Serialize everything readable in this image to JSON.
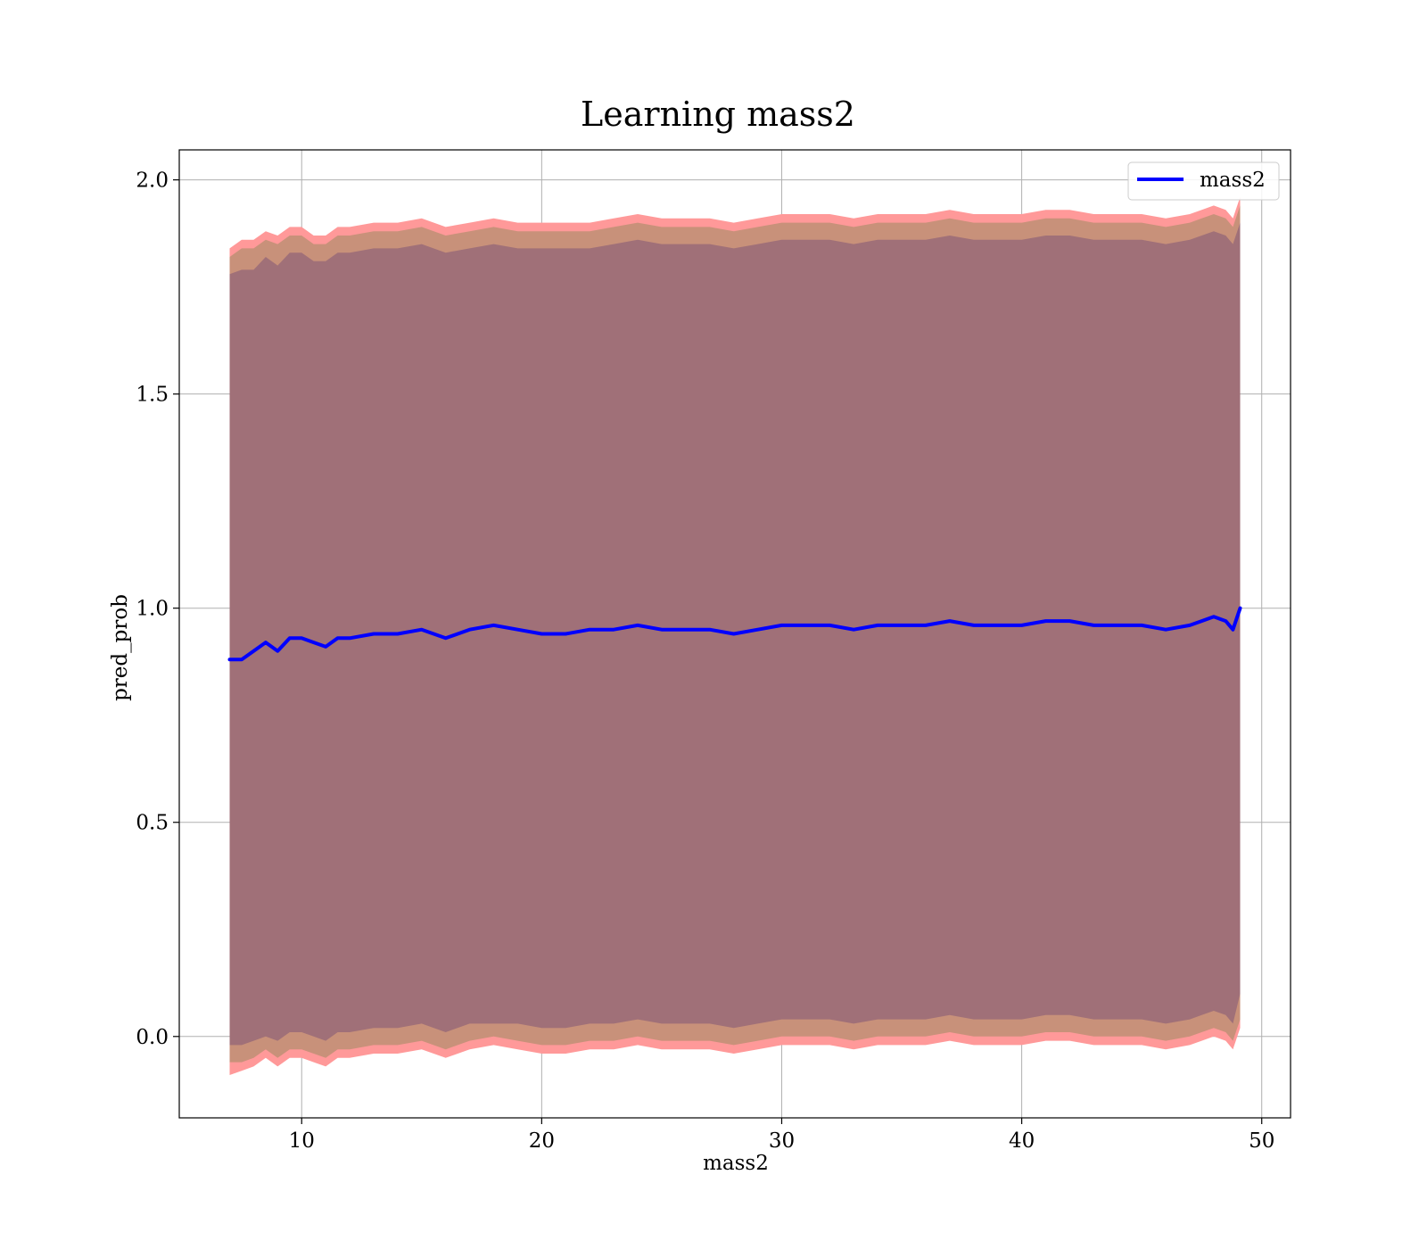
{
  "chart_data": {
    "type": "line",
    "title": "Learning mass2",
    "xlabel": "mass2",
    "ylabel": "pred_prob",
    "xlim": [
      4.9,
      51.2
    ],
    "ylim": [
      -0.19,
      2.07
    ],
    "xticks": [
      10,
      20,
      30,
      40,
      50
    ],
    "yticks": [
      0.0,
      0.5,
      1.0,
      1.5,
      2.0
    ],
    "xtick_labels": [
      "10",
      "20",
      "30",
      "40",
      50
    ],
    "ytick_labels": [
      "0.0",
      "0.5",
      "1.0",
      "1.5",
      "2.0"
    ],
    "grid": true,
    "legend": {
      "position": "top-right",
      "entries": [
        "mass2"
      ]
    },
    "colors": {
      "line": "#0000ff",
      "outer_band": "#ff9999",
      "middle_band": "#c8917a",
      "inner_band": "#a07078",
      "grid": "#b0b0b0"
    },
    "series": [
      {
        "name": "mass2",
        "x": [
          7.0,
          7.5,
          8.0,
          8.5,
          9.0,
          9.5,
          10.0,
          10.5,
          11.0,
          11.5,
          12.0,
          13.0,
          14.0,
          15.0,
          16.0,
          17.0,
          18.0,
          19.0,
          20.0,
          21.0,
          22.0,
          23.0,
          24.0,
          25.0,
          26.0,
          27.0,
          28.0,
          29.0,
          30.0,
          31.0,
          32.0,
          33.0,
          34.0,
          35.0,
          36.0,
          37.0,
          38.0,
          39.0,
          40.0,
          41.0,
          42.0,
          43.0,
          44.0,
          45.0,
          46.0,
          47.0,
          47.5,
          48.0,
          48.5,
          48.8,
          49.1
        ],
        "y": [
          0.88,
          0.88,
          0.9,
          0.92,
          0.9,
          0.93,
          0.93,
          0.92,
          0.91,
          0.93,
          0.93,
          0.94,
          0.94,
          0.95,
          0.93,
          0.95,
          0.96,
          0.95,
          0.94,
          0.94,
          0.95,
          0.95,
          0.96,
          0.95,
          0.95,
          0.95,
          0.94,
          0.95,
          0.96,
          0.96,
          0.96,
          0.95,
          0.96,
          0.96,
          0.96,
          0.97,
          0.96,
          0.96,
          0.96,
          0.97,
          0.97,
          0.96,
          0.96,
          0.96,
          0.95,
          0.96,
          0.97,
          0.98,
          0.97,
          0.95,
          1.0
        ],
        "outer_upper": [
          1.84,
          1.86,
          1.86,
          1.88,
          1.87,
          1.89,
          1.89,
          1.87,
          1.87,
          1.89,
          1.89,
          1.9,
          1.9,
          1.91,
          1.89,
          1.9,
          1.91,
          1.9,
          1.9,
          1.9,
          1.9,
          1.91,
          1.92,
          1.91,
          1.91,
          1.91,
          1.9,
          1.91,
          1.92,
          1.92,
          1.92,
          1.91,
          1.92,
          1.92,
          1.92,
          1.93,
          1.92,
          1.92,
          1.92,
          1.93,
          1.93,
          1.92,
          1.92,
          1.92,
          1.91,
          1.92,
          1.93,
          1.94,
          1.93,
          1.91,
          1.96
        ],
        "middle_upper": [
          1.82,
          1.84,
          1.84,
          1.86,
          1.85,
          1.87,
          1.87,
          1.85,
          1.85,
          1.87,
          1.87,
          1.88,
          1.88,
          1.89,
          1.87,
          1.88,
          1.89,
          1.88,
          1.88,
          1.88,
          1.88,
          1.89,
          1.9,
          1.89,
          1.89,
          1.89,
          1.88,
          1.89,
          1.9,
          1.9,
          1.9,
          1.89,
          1.9,
          1.9,
          1.9,
          1.91,
          1.9,
          1.9,
          1.9,
          1.91,
          1.91,
          1.9,
          1.9,
          1.9,
          1.89,
          1.9,
          1.91,
          1.92,
          1.91,
          1.89,
          1.94
        ],
        "inner_upper": [
          1.78,
          1.79,
          1.79,
          1.82,
          1.8,
          1.83,
          1.83,
          1.81,
          1.81,
          1.83,
          1.83,
          1.84,
          1.84,
          1.85,
          1.83,
          1.84,
          1.85,
          1.84,
          1.84,
          1.84,
          1.84,
          1.85,
          1.86,
          1.85,
          1.85,
          1.85,
          1.84,
          1.85,
          1.86,
          1.86,
          1.86,
          1.85,
          1.86,
          1.86,
          1.86,
          1.87,
          1.86,
          1.86,
          1.86,
          1.87,
          1.87,
          1.86,
          1.86,
          1.86,
          1.85,
          1.86,
          1.87,
          1.88,
          1.87,
          1.85,
          1.9
        ],
        "inner_lower": [
          -0.02,
          -0.02,
          -0.01,
          0.0,
          -0.01,
          0.01,
          0.01,
          0.0,
          -0.01,
          0.01,
          0.01,
          0.02,
          0.02,
          0.03,
          0.01,
          0.03,
          0.03,
          0.03,
          0.02,
          0.02,
          0.03,
          0.03,
          0.04,
          0.03,
          0.03,
          0.03,
          0.02,
          0.03,
          0.04,
          0.04,
          0.04,
          0.03,
          0.04,
          0.04,
          0.04,
          0.05,
          0.04,
          0.04,
          0.04,
          0.05,
          0.05,
          0.04,
          0.04,
          0.04,
          0.03,
          0.04,
          0.05,
          0.06,
          0.05,
          0.03,
          0.1
        ],
        "middle_lower": [
          -0.06,
          -0.06,
          -0.05,
          -0.03,
          -0.05,
          -0.03,
          -0.03,
          -0.04,
          -0.05,
          -0.03,
          -0.03,
          -0.02,
          -0.02,
          -0.01,
          -0.03,
          -0.01,
          0.0,
          -0.01,
          -0.02,
          -0.02,
          -0.01,
          -0.01,
          0.0,
          -0.01,
          -0.01,
          -0.01,
          -0.02,
          -0.01,
          0.0,
          0.0,
          0.0,
          -0.01,
          0.0,
          0.0,
          0.0,
          0.01,
          0.0,
          0.0,
          0.0,
          0.01,
          0.01,
          0.0,
          0.0,
          0.0,
          -0.01,
          0.0,
          0.01,
          0.02,
          0.01,
          -0.01,
          0.04
        ],
        "outer_lower": [
          -0.09,
          -0.08,
          -0.07,
          -0.05,
          -0.07,
          -0.05,
          -0.05,
          -0.06,
          -0.07,
          -0.05,
          -0.05,
          -0.04,
          -0.04,
          -0.03,
          -0.05,
          -0.03,
          -0.02,
          -0.03,
          -0.04,
          -0.04,
          -0.03,
          -0.03,
          -0.02,
          -0.03,
          -0.03,
          -0.03,
          -0.04,
          -0.03,
          -0.02,
          -0.02,
          -0.02,
          -0.03,
          -0.02,
          -0.02,
          -0.02,
          -0.01,
          -0.02,
          -0.02,
          -0.02,
          -0.01,
          -0.01,
          -0.02,
          -0.02,
          -0.02,
          -0.03,
          -0.02,
          -0.01,
          0.0,
          -0.01,
          -0.03,
          0.02
        ]
      }
    ]
  }
}
